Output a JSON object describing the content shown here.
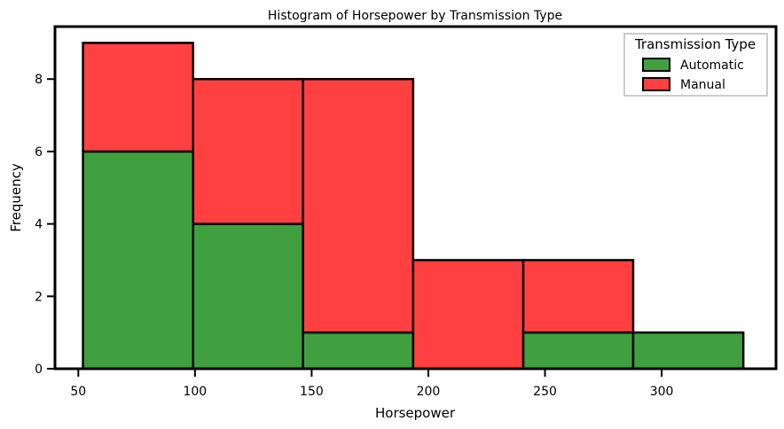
{
  "chart_data": {
    "type": "bar",
    "stacked": true,
    "title": "Histogram of Horsepower by Transmission Type",
    "xlabel": "Horsepower",
    "ylabel": "Frequency",
    "xlim": [
      40,
      349
    ],
    "ylim": [
      0,
      9.45
    ],
    "xticks": [
      50,
      100,
      150,
      200,
      250,
      300
    ],
    "yticks": [
      0,
      2,
      4,
      6,
      8
    ],
    "bin_edges": [
      52,
      99.2,
      146.3,
      193.5,
      240.7,
      287.8,
      335
    ],
    "series": [
      {
        "name": "Automatic",
        "color": "#40a040",
        "values": [
          6,
          4,
          1,
          0,
          1,
          1
        ]
      },
      {
        "name": "Manual",
        "color": "#ff4040",
        "values": [
          3,
          4,
          7,
          3,
          2,
          0
        ]
      }
    ],
    "legend": {
      "title": "Transmission Type",
      "placement": "top-right"
    },
    "grid": false
  }
}
